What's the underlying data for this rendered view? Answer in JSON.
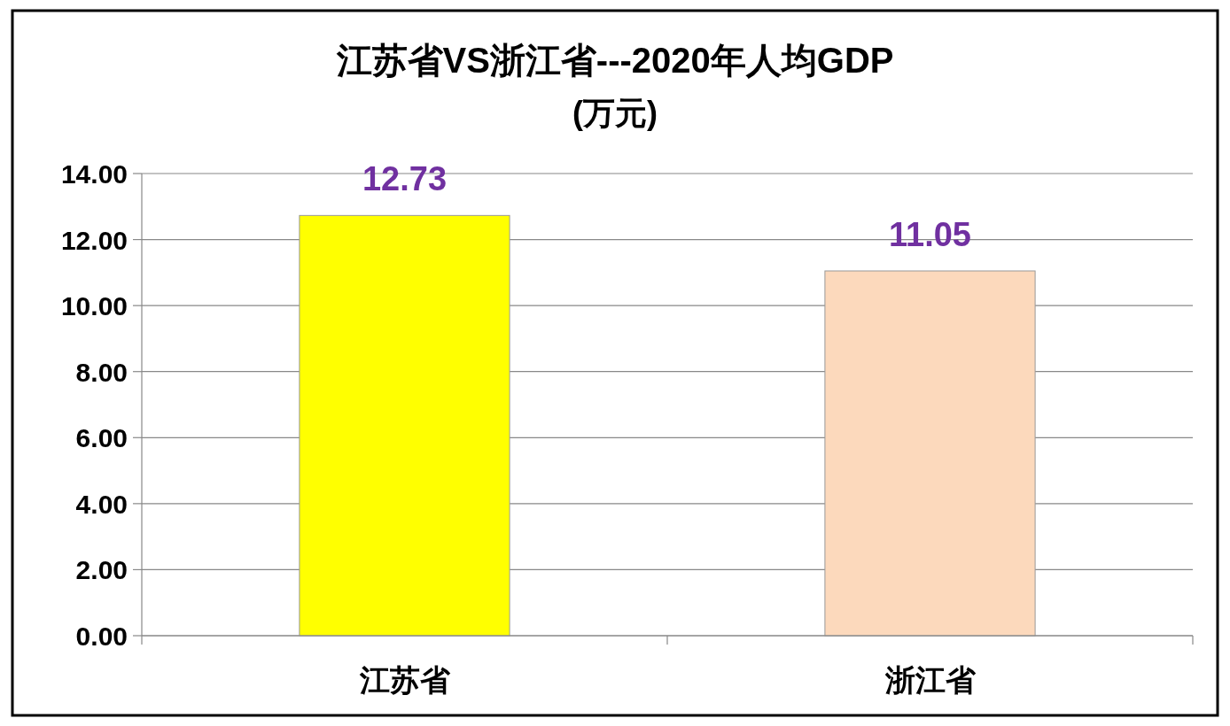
{
  "chart_data": {
    "type": "bar",
    "title": "江苏省VS浙江省---2020年人均GDP",
    "subtitle": "(万元)",
    "categories": [
      "江苏省",
      "浙江省"
    ],
    "values": [
      12.73,
      11.05
    ],
    "colors": [
      "#ffff00",
      "#fcd9bc"
    ],
    "ylim": [
      0,
      14
    ],
    "yticks": [
      {
        "value": 0,
        "label": "0.00"
      },
      {
        "value": 2,
        "label": "2.00"
      },
      {
        "value": 4,
        "label": "4.00"
      },
      {
        "value": 6,
        "label": "6.00"
      },
      {
        "value": 8,
        "label": "8.00"
      },
      {
        "value": 10,
        "label": "10.00"
      },
      {
        "value": 12,
        "label": "12.00"
      },
      {
        "value": 14,
        "label": "14.00"
      }
    ],
    "grid": "y",
    "data_labels": true
  }
}
